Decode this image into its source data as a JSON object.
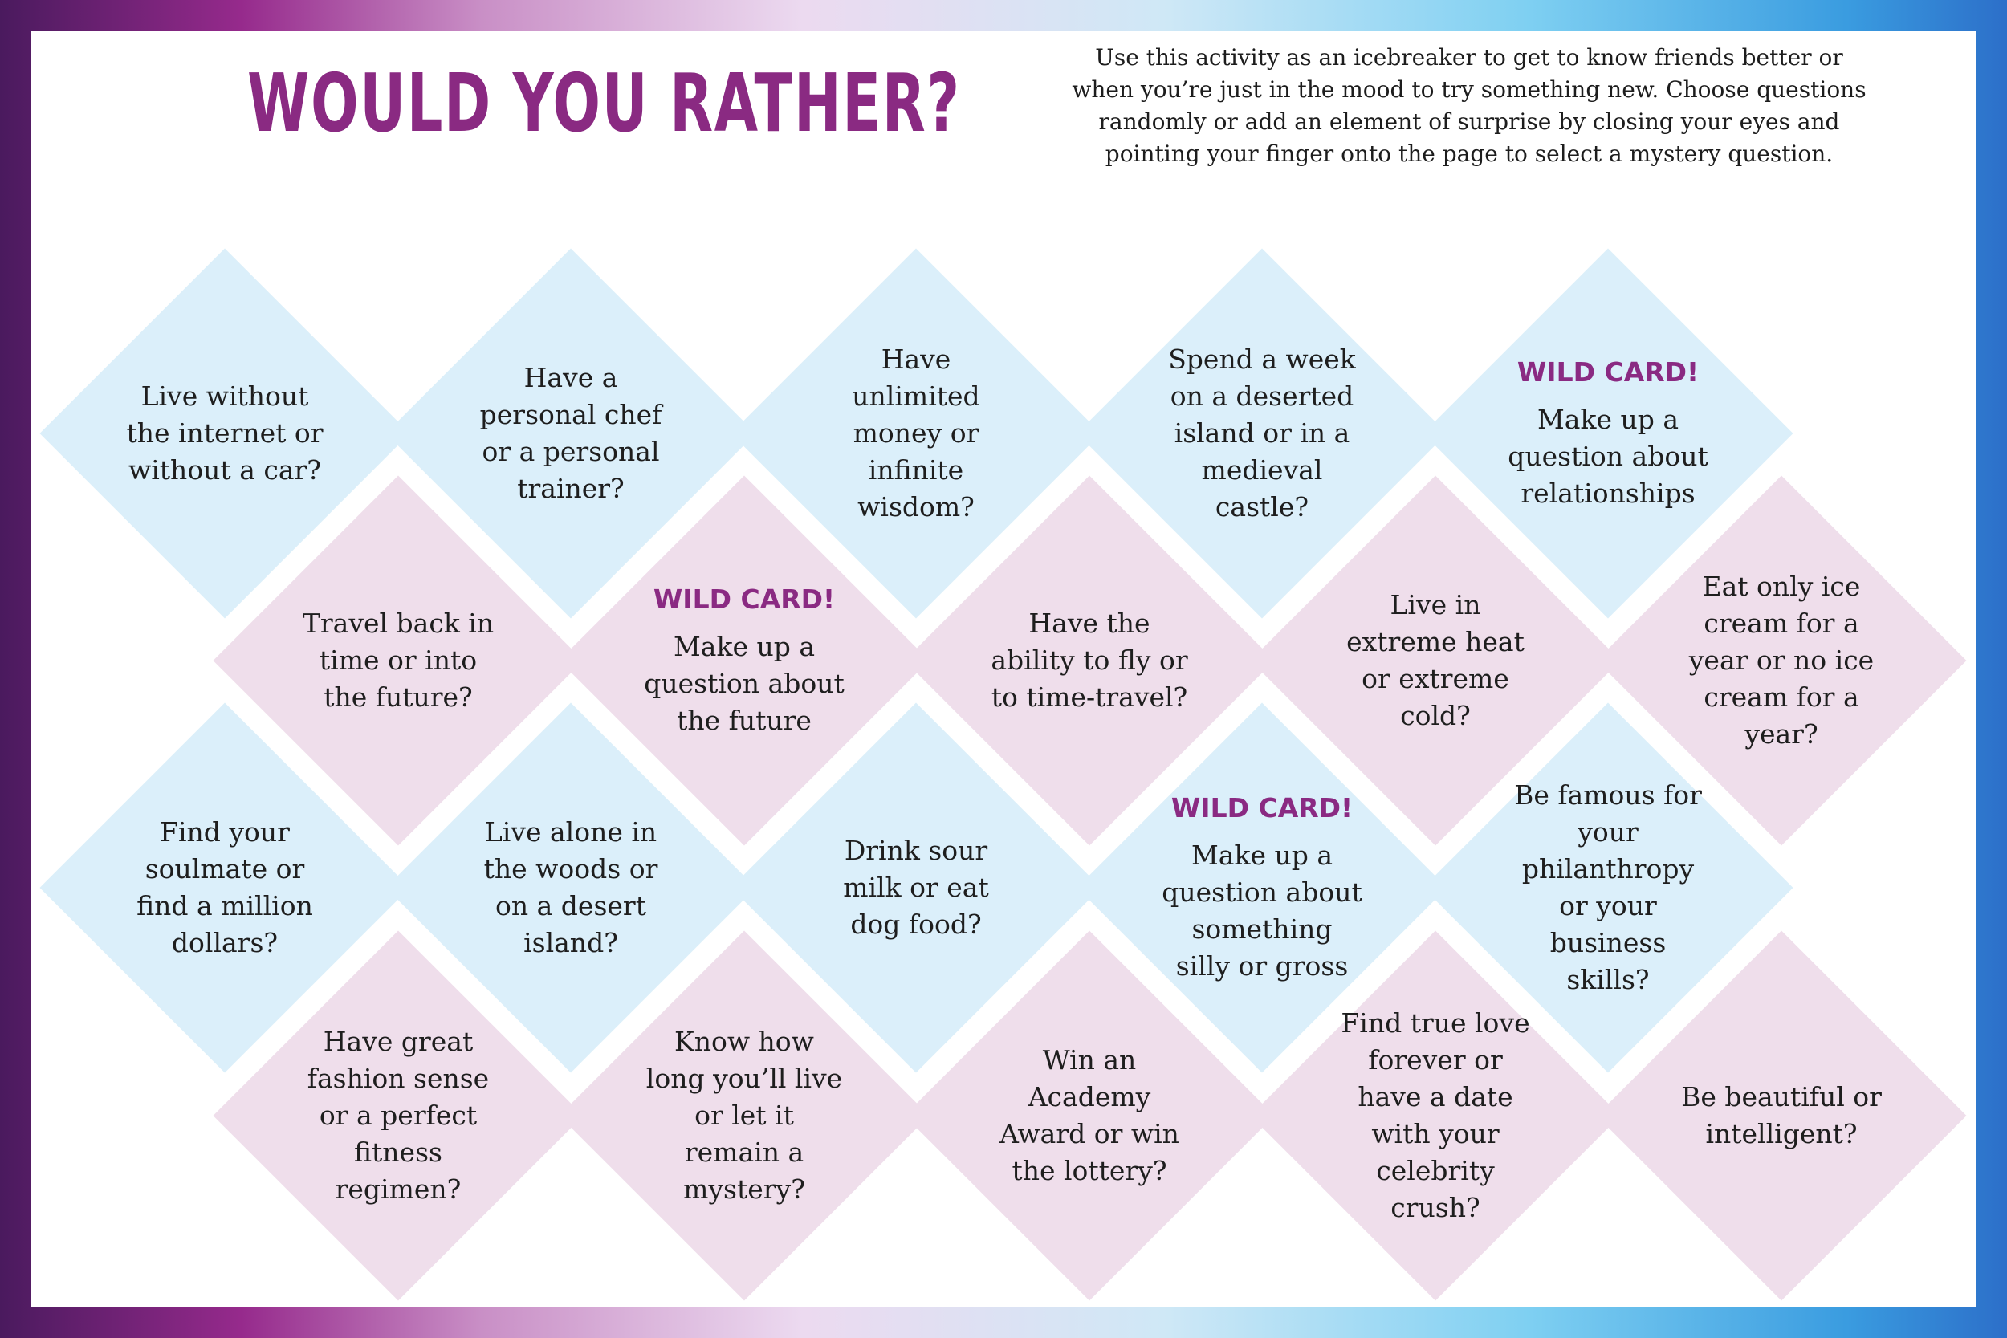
{
  "title": "WOULD YOU RATHER?",
  "intro": "Use this activity as an icebreaker to get to know friends better or when you’re just in the mood to try something new. Choose questions randomly or add an element of surprise by closing your eyes and pointing your finger onto the page to select a mystery question.",
  "colors": {
    "accent": "#8a2a82",
    "blue_diamond": "#dbeffa",
    "pink_diamond": "#efdeeb"
  },
  "questions": [
    {
      "text": "Live without the internet or without a car?",
      "color": "blue"
    },
    {
      "text": "Have a personal chef or a personal trainer?",
      "color": "blue"
    },
    {
      "text": "Have unlimited money or infinite wisdom?",
      "color": "blue"
    },
    {
      "text": "Spend a week on a deserted island or in a medieval castle?",
      "color": "blue"
    },
    {
      "wild": "WILD CARD!",
      "text": "Make up a question about relationships",
      "color": "blue"
    },
    {
      "text": "Travel back in time or into the future?",
      "color": "pink"
    },
    {
      "wild": "WILD CARD!",
      "text": "Make up a question about the future",
      "color": "pink"
    },
    {
      "text": "Have the ability to fly or to time-travel?",
      "color": "pink"
    },
    {
      "text": "Live in extreme heat or extreme cold?",
      "color": "pink"
    },
    {
      "text": "Eat only ice cream for a year or no ice cream for a year?",
      "color": "pink"
    },
    {
      "text": "Find your soulmate or find a million dollars?",
      "color": "blue"
    },
    {
      "text": "Live alone in the woods or on a desert island?",
      "color": "blue"
    },
    {
      "text": "Drink sour milk or eat dog food?",
      "color": "blue"
    },
    {
      "wild": "WILD CARD!",
      "text": "Make up a question about something silly or gross",
      "color": "blue"
    },
    {
      "text": "Be famous for your philanthropy or your business skills?",
      "color": "blue"
    },
    {
      "text": "Have great fashion sense or a perfect fitness regimen?",
      "color": "pink"
    },
    {
      "text": "Know how long you’ll live or let it remain a mystery?",
      "color": "pink"
    },
    {
      "text": "Win an Academy Award or win the lottery?",
      "color": "pink"
    },
    {
      "text": "Find true love forever or have a date with your celebrity crush?",
      "color": "pink"
    },
    {
      "text": "Be beautiful or intelligent?",
      "color": "pink"
    }
  ]
}
